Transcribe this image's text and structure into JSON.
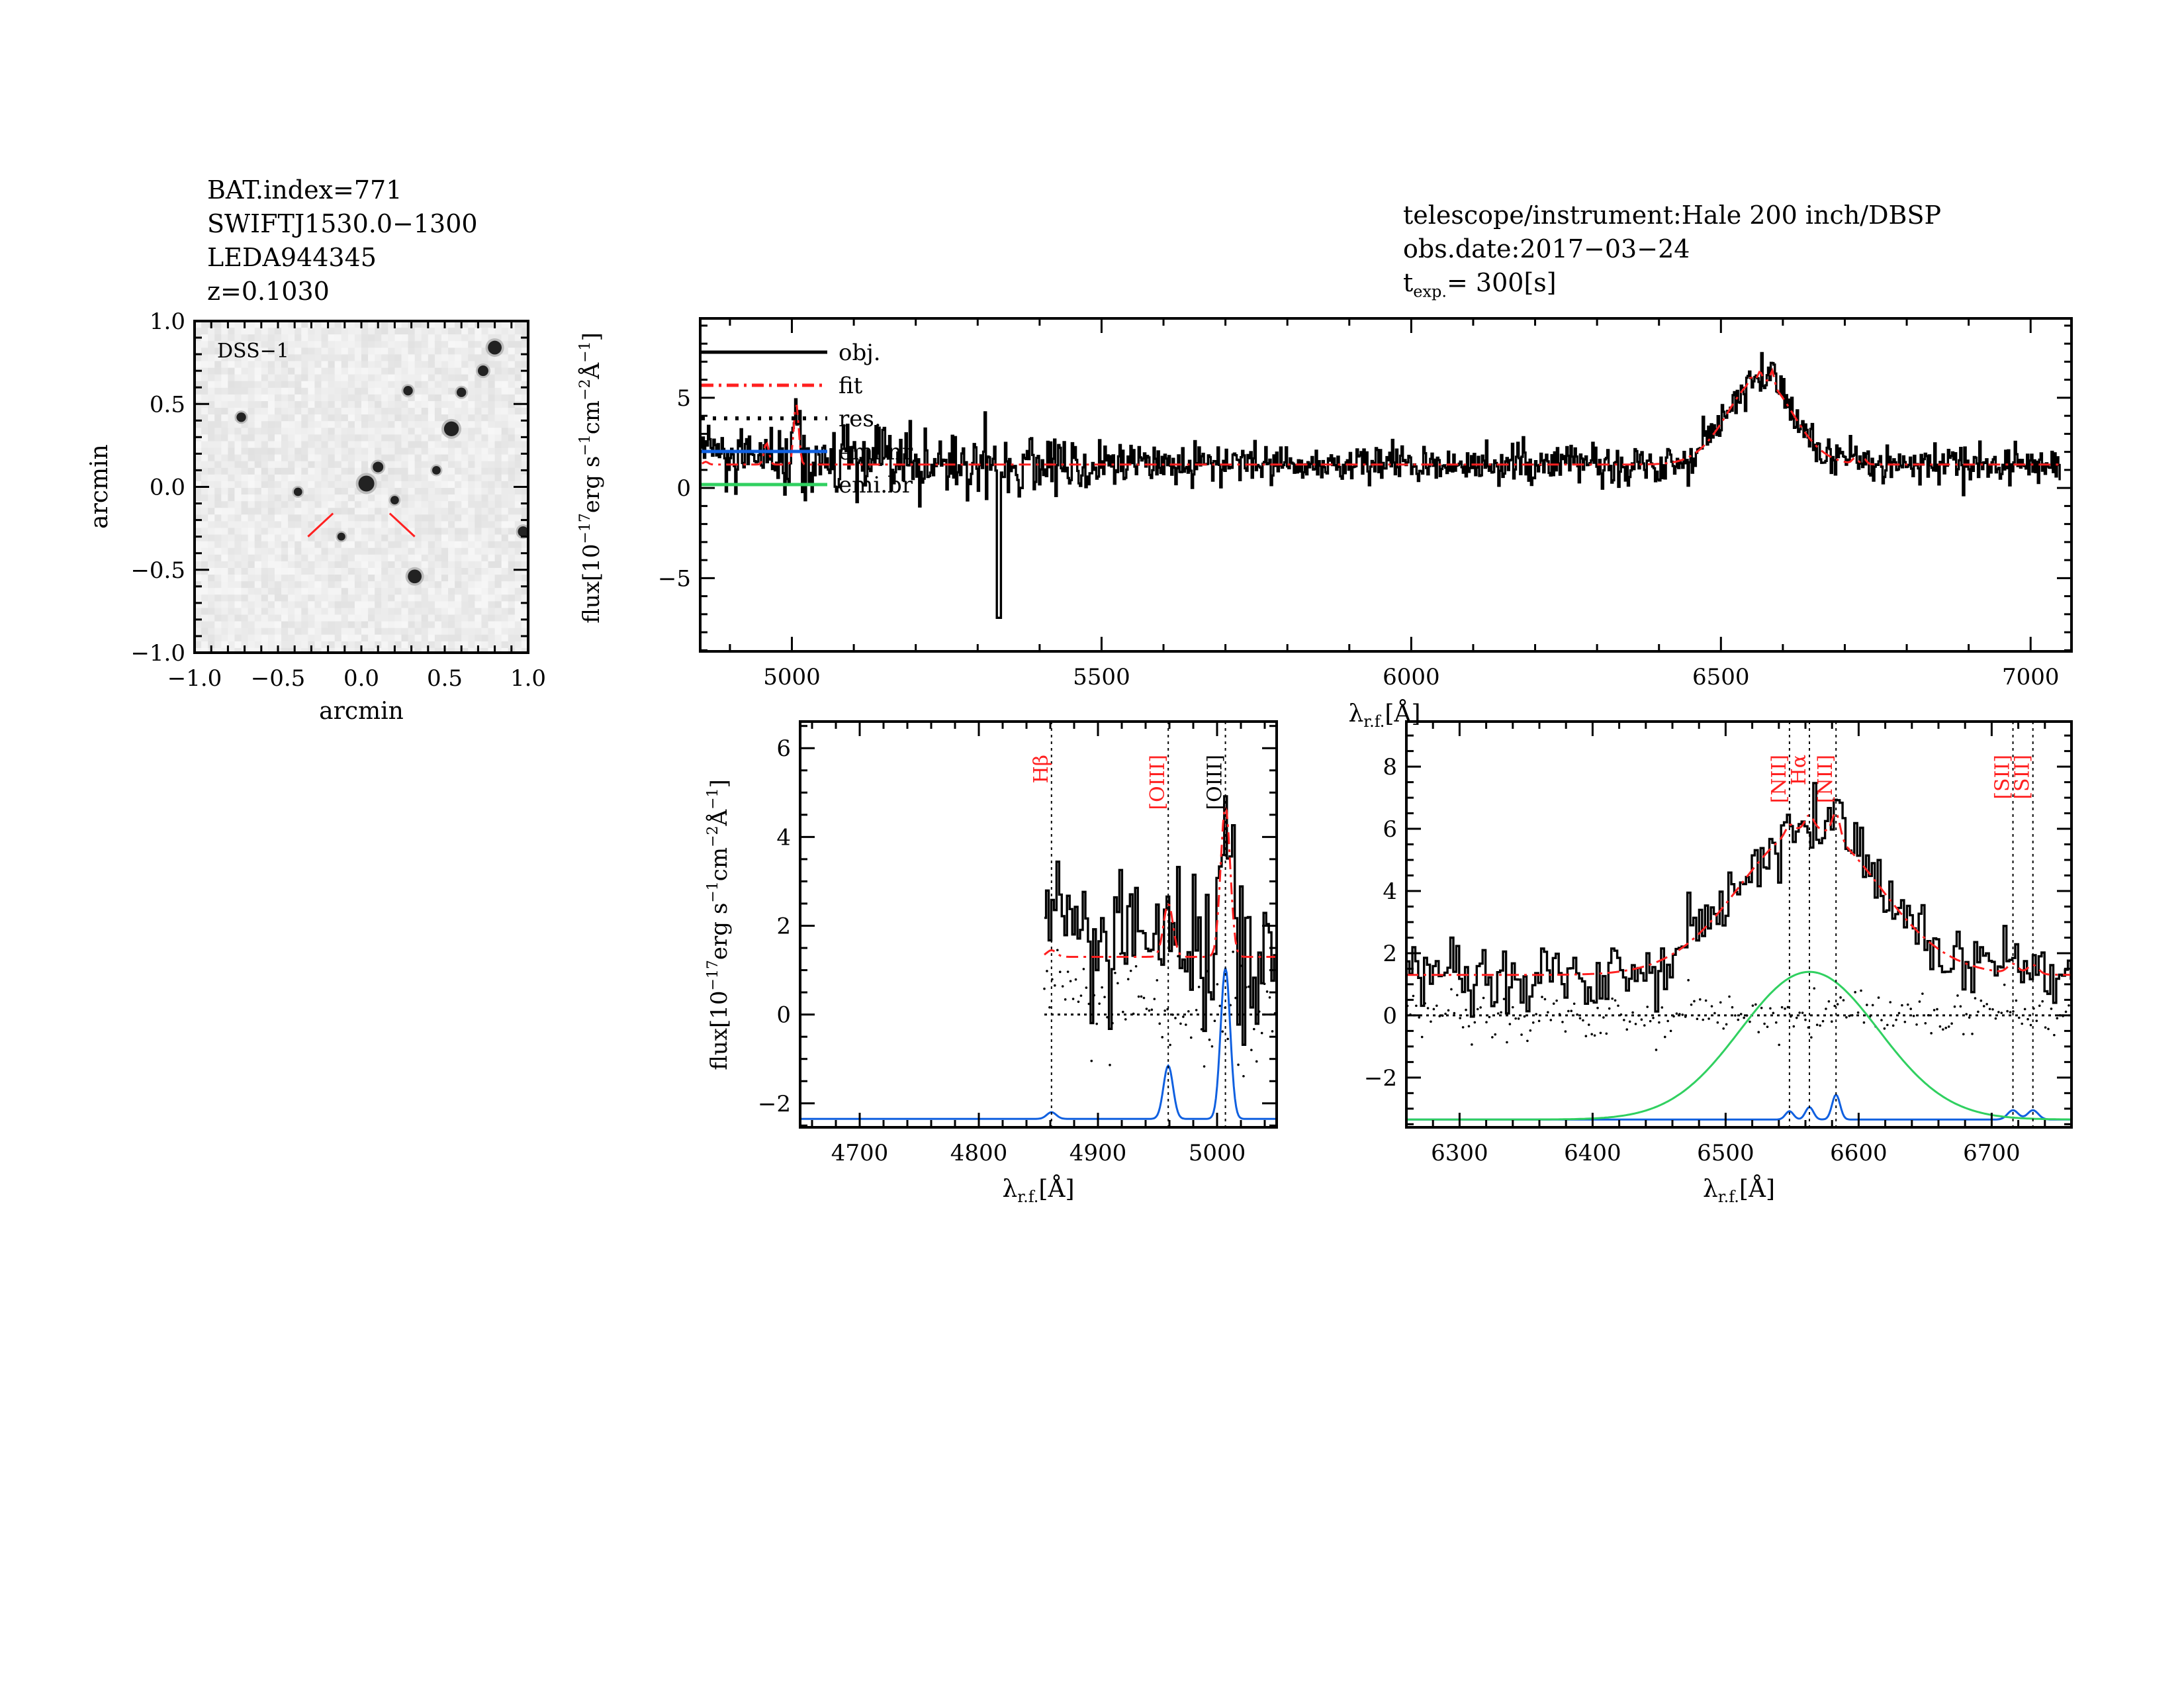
{
  "header_left": [
    "BAT.index=771",
    "SWIFTJ1530.0−1300",
    "LEDA944345",
    "z=0.1030"
  ],
  "header_right": {
    "line1": "telescope/instrument:Hale 200 inch/DBSP",
    "line2": "obs.date:2017−03−24",
    "texp_label": "t",
    "texp_sub": "exp.",
    "texp_value": "= 300[s]"
  },
  "colors": {
    "obj": "#000000",
    "fit": "#ff2020",
    "emi_nr": "#1060e0",
    "emi_br": "#30d060",
    "line_label": "#ff2020"
  },
  "chart_data": [
    {
      "type": "heatmap",
      "name": "DSS image",
      "label": "DSS−1",
      "xlabel": "arcmin",
      "ylabel": "arcmin",
      "xlim": [
        -1,
        1
      ],
      "ylim": [
        -1,
        1
      ],
      "xticks": [
        "−1.0",
        "−0.5",
        "0.0",
        "0.5",
        "1.0"
      ],
      "yticks": [
        "−1.0",
        "−0.5",
        "0.0",
        "0.5",
        "1.0"
      ],
      "stars": [
        [
          0.03,
          0.02,
          1.0
        ],
        [
          0.8,
          0.84,
          0.8
        ],
        [
          0.73,
          0.7,
          0.5
        ],
        [
          0.54,
          0.35,
          0.9
        ],
        [
          0.6,
          0.57,
          0.4
        ],
        [
          -0.72,
          0.42,
          0.4
        ],
        [
          0.28,
          0.58,
          0.4
        ],
        [
          0.1,
          0.12,
          0.5
        ],
        [
          0.45,
          0.1,
          0.3
        ],
        [
          0.32,
          -0.54,
          0.8
        ],
        [
          0.97,
          -0.27,
          0.5
        ],
        [
          -0.38,
          -0.03,
          0.3
        ],
        [
          -0.12,
          -0.3,
          0.25
        ],
        [
          0.2,
          -0.08,
          0.3
        ]
      ]
    },
    {
      "type": "line",
      "name": "full spectrum",
      "xlabel": "λ",
      "xlabel_sub": "r.f.",
      "xlabel_unit": "[Å]",
      "ylabel": "flux[10⁻¹⁷erg s⁻¹cm⁻²Å⁻¹]",
      "xlim": [
        4852,
        7066
      ],
      "ylim": [
        -9.06,
        9.4
      ],
      "xticks": [
        5000,
        5500,
        6000,
        6500,
        7000
      ],
      "yticks": [
        -5,
        0,
        5
      ],
      "legend": [
        {
          "label": "obj.",
          "style": "solid",
          "color": "#000000"
        },
        {
          "label": "fit",
          "style": "dashdot",
          "color": "#ff2020"
        },
        {
          "label": "res.",
          "style": "dotted",
          "color": "#000000"
        },
        {
          "label": "emi.nr",
          "style": "solid",
          "color": "#1060e0"
        },
        {
          "label": "emi.br",
          "style": "solid",
          "color": "#30d060"
        }
      ],
      "legend_position": "top-left"
    },
    {
      "type": "line",
      "name": "H-beta region",
      "xlim": [
        4650,
        5050
      ],
      "ylim": [
        -2.54,
        6.6
      ],
      "xticks": [
        4700,
        4800,
        4900,
        5000
      ],
      "yticks": [
        -2,
        0,
        2,
        4,
        6
      ],
      "component_offset": -2.35,
      "lines": [
        {
          "label": "Hβ",
          "wave": 4861,
          "color": "#ff2020"
        },
        {
          "label": "[OIII]",
          "wave": 4959,
          "color": "#ff2020"
        },
        {
          "label": "[OIII]",
          "wave": 5007,
          "color": "#000000"
        }
      ]
    },
    {
      "type": "line",
      "name": "H-alpha region",
      "xlim": [
        6260,
        6760
      ],
      "ylim": [
        -3.6,
        9.45
      ],
      "xticks": [
        6300,
        6400,
        6500,
        6600,
        6700
      ],
      "yticks": [
        -2,
        0,
        2,
        4,
        6,
        8
      ],
      "component_offset": -3.35,
      "lines": [
        {
          "label": "[NII]",
          "wave": 6548,
          "color": "#ff2020"
        },
        {
          "label": "Hα",
          "wave": 6563,
          "color": "#ff2020"
        },
        {
          "label": "[NII]",
          "wave": 6583,
          "color": "#ff2020"
        },
        {
          "label": "[SII]",
          "wave": 6716,
          "color": "#ff2020"
        },
        {
          "label": "[SII]",
          "wave": 6731,
          "color": "#ff2020"
        }
      ]
    }
  ],
  "model": {
    "continuum": 1.3,
    "data_start": 4855,
    "data_end": 7050,
    "narrow": [
      [
        4861,
        0.15,
        4
      ],
      [
        4959,
        1.2,
        4
      ],
      [
        5007,
        3.4,
        4
      ],
      [
        6548,
        0.27,
        3
      ],
      [
        6563,
        0.4,
        3
      ],
      [
        6583,
        0.8,
        3
      ],
      [
        6716,
        0.3,
        4
      ],
      [
        6731,
        0.3,
        4
      ]
    ],
    "broad": [
      [
        6563,
        4.75,
        52
      ]
    ]
  }
}
